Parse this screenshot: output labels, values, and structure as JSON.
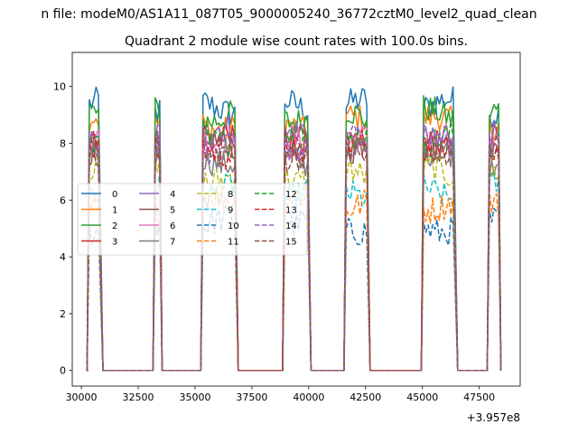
{
  "figure": {
    "suptitle": "n file: modeM0/AS1A11_087T05_9000005240_36772cztM0_level2_quad_clean",
    "offset_label": "+3.957e8"
  },
  "chart_data": {
    "type": "line",
    "title": "Quadrant 2 module wise count rates with 100.0s bins.",
    "xlabel": "",
    "ylabel": "",
    "x_offset": 395700000,
    "xlim": [
      29600,
      49300
    ],
    "ylim": [
      -0.55,
      11.2
    ],
    "x_ticks": [
      30000,
      32500,
      35000,
      37500,
      40000,
      42500,
      45000,
      47500
    ],
    "x_tick_labels": [
      "30000",
      "32500",
      "35000",
      "37500",
      "40000",
      "42500",
      "45000",
      "47500"
    ],
    "y_ticks": [
      0,
      2,
      4,
      6,
      8,
      10
    ],
    "y_tick_labels": [
      "0",
      "2",
      "4",
      "6",
      "8",
      "10"
    ],
    "grid": false,
    "legend_position": "center-left",
    "segments": [
      {
        "on_start": 30350,
        "on_end": 30800,
        "off_end": 30950
      },
      {
        "on_start": 33250,
        "on_end": 33450,
        "off_end": 33550
      },
      {
        "on_start": 35350,
        "on_end": 36750,
        "off_end": 36900
      },
      {
        "on_start": 38950,
        "on_end": 39950,
        "off_end": 40100
      },
      {
        "on_start": 41650,
        "on_end": 42550,
        "off_end": 42700
      },
      {
        "on_start": 45050,
        "on_end": 46400,
        "off_end": 46550
      },
      {
        "on_start": 47950,
        "on_end": 48350,
        "off_end": 48450
      }
    ],
    "series": [
      {
        "name": "0",
        "color": "#1f77b4",
        "dashed": false,
        "level": 9.3
      },
      {
        "name": "1",
        "color": "#ff7f0e",
        "dashed": false,
        "level": 8.7
      },
      {
        "name": "2",
        "color": "#2ca02c",
        "dashed": false,
        "level": 9.0
      },
      {
        "name": "3",
        "color": "#d62728",
        "dashed": false,
        "level": 8.0
      },
      {
        "name": "4",
        "color": "#9467bd",
        "dashed": false,
        "level": 8.3
      },
      {
        "name": "5",
        "color": "#8c564b",
        "dashed": false,
        "level": 7.9
      },
      {
        "name": "6",
        "color": "#e377c2",
        "dashed": false,
        "level": 8.0
      },
      {
        "name": "7",
        "color": "#7f7f7f",
        "dashed": false,
        "level": 7.5
      },
      {
        "name": "8",
        "color": "#bcbd22",
        "dashed": true,
        "level": 6.9
      },
      {
        "name": "9",
        "color": "#17becf",
        "dashed": true,
        "level": 6.3
      },
      {
        "name": "10",
        "color": "#1f77b4",
        "dashed": true,
        "level": 5.1
      },
      {
        "name": "11",
        "color": "#ff7f0e",
        "dashed": true,
        "level": 5.9
      },
      {
        "name": "12",
        "color": "#2ca02c",
        "dashed": true,
        "level": 8.1
      },
      {
        "name": "13",
        "color": "#d62728",
        "dashed": true,
        "level": 7.8
      },
      {
        "name": "14",
        "color": "#9467bd",
        "dashed": true,
        "level": 8.0
      },
      {
        "name": "15",
        "color": "#8c564b",
        "dashed": true,
        "level": 7.7
      }
    ]
  }
}
